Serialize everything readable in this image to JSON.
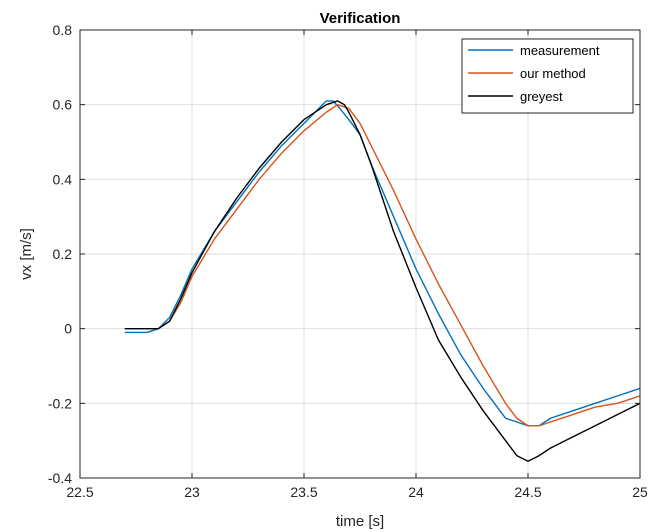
{
  "chart_data": {
    "type": "line",
    "title": "Verification",
    "xlabel": "time [s]",
    "ylabel": "vx [m/s]",
    "xlim": [
      22.5,
      25
    ],
    "ylim": [
      -0.4,
      0.8
    ],
    "xticks": [
      22.5,
      23,
      23.5,
      24,
      24.5,
      25
    ],
    "yticks": [
      -0.4,
      -0.2,
      0,
      0.2,
      0.4,
      0.6,
      0.8
    ],
    "xtick_labels": [
      "22.5",
      "23",
      "23.5",
      "24",
      "24.5",
      "25"
    ],
    "ytick_labels": [
      "-0.4",
      "-0.2",
      "0",
      "0.2",
      "0.4",
      "0.6",
      "0.8"
    ],
    "grid": true,
    "legend_position": "top-right",
    "series": [
      {
        "name": "measurement",
        "color": "#0072BD",
        "x": [
          22.7,
          22.75,
          22.8,
          22.85,
          22.9,
          22.95,
          23.0,
          23.1,
          23.2,
          23.3,
          23.4,
          23.5,
          23.55,
          23.6,
          23.63,
          23.66,
          23.7,
          23.75,
          23.8,
          23.9,
          24.0,
          24.1,
          24.2,
          24.3,
          24.4,
          24.45,
          24.5,
          24.55,
          24.6,
          24.7,
          24.8,
          24.9,
          25.0
        ],
        "y": [
          -0.01,
          -0.01,
          -0.01,
          0.0,
          0.03,
          0.09,
          0.16,
          0.26,
          0.34,
          0.42,
          0.49,
          0.55,
          0.58,
          0.61,
          0.61,
          0.59,
          0.56,
          0.52,
          0.44,
          0.3,
          0.16,
          0.04,
          -0.07,
          -0.16,
          -0.24,
          -0.25,
          -0.26,
          -0.26,
          -0.24,
          -0.22,
          -0.2,
          -0.18,
          -0.16
        ]
      },
      {
        "name": "our method",
        "color": "#D95319",
        "x": [
          22.7,
          22.8,
          22.85,
          22.9,
          22.95,
          23.0,
          23.1,
          23.2,
          23.3,
          23.4,
          23.5,
          23.6,
          23.65,
          23.7,
          23.75,
          23.8,
          23.9,
          24.0,
          24.1,
          24.2,
          24.3,
          24.4,
          24.45,
          24.5,
          24.55,
          24.6,
          24.7,
          24.8,
          24.9,
          25.0
        ],
        "y": [
          0.0,
          0.0,
          0.0,
          0.02,
          0.07,
          0.14,
          0.24,
          0.32,
          0.4,
          0.47,
          0.53,
          0.58,
          0.6,
          0.59,
          0.55,
          0.49,
          0.37,
          0.24,
          0.12,
          0.01,
          -0.1,
          -0.2,
          -0.24,
          -0.26,
          -0.26,
          -0.25,
          -0.23,
          -0.21,
          -0.2,
          -0.18
        ]
      },
      {
        "name": "greyest",
        "color": "#000000",
        "x": [
          22.7,
          22.8,
          22.85,
          22.9,
          22.95,
          23.0,
          23.1,
          23.2,
          23.3,
          23.4,
          23.5,
          23.6,
          23.65,
          23.68,
          23.7,
          23.75,
          23.8,
          23.9,
          24.0,
          24.1,
          24.2,
          24.3,
          24.4,
          24.45,
          24.5,
          24.55,
          24.6,
          24.7,
          24.8,
          24.9,
          25.0
        ],
        "y": [
          0.0,
          0.0,
          0.0,
          0.02,
          0.08,
          0.15,
          0.26,
          0.35,
          0.43,
          0.5,
          0.56,
          0.6,
          0.61,
          0.6,
          0.58,
          0.52,
          0.44,
          0.26,
          0.11,
          -0.03,
          -0.13,
          -0.22,
          -0.3,
          -0.34,
          -0.355,
          -0.34,
          -0.32,
          -0.29,
          -0.26,
          -0.23,
          -0.2
        ]
      }
    ]
  }
}
